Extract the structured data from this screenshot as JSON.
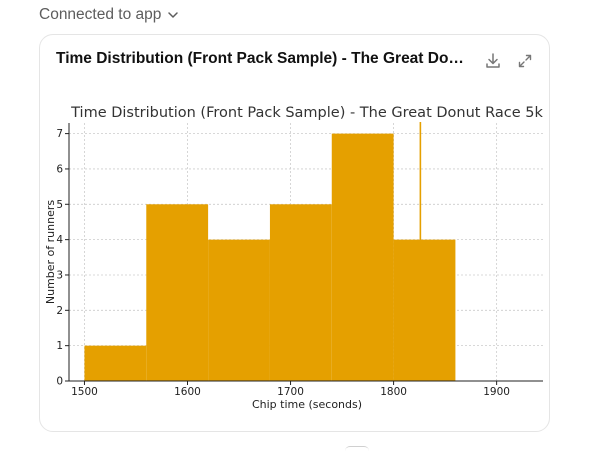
{
  "header": {
    "connected_label": "Connected to app"
  },
  "card": {
    "title": "Time Distribution (Front Pack Sample) - The Great Do…",
    "download_icon": "download-icon",
    "expand_icon": "expand-icon"
  },
  "colors": {
    "bar": "#e5a000",
    "marker": "#e5a000",
    "grid": "#cccccc",
    "axis": "#222222"
  },
  "chart_data": {
    "type": "bar",
    "title": "Time Distribution (Front Pack Sample) - The Great Donut Race 5k",
    "xlabel": "Chip time (seconds)",
    "ylabel": "Number of runners",
    "bins": [
      {
        "start": 1500,
        "end": 1560,
        "count": 1
      },
      {
        "start": 1560,
        "end": 1620,
        "count": 5
      },
      {
        "start": 1620,
        "end": 1680,
        "count": 4
      },
      {
        "start": 1680,
        "end": 1740,
        "count": 5
      },
      {
        "start": 1740,
        "end": 1800,
        "count": 7
      },
      {
        "start": 1800,
        "end": 1860,
        "count": 4
      }
    ],
    "marker_x": 1826,
    "xlim": [
      1485,
      1945
    ],
    "ylim": [
      0,
      7.3
    ],
    "xticks": [
      1500,
      1600,
      1700,
      1800,
      1900
    ],
    "yticks": [
      0,
      1,
      2,
      3,
      4,
      5,
      6,
      7
    ],
    "grid": true
  }
}
